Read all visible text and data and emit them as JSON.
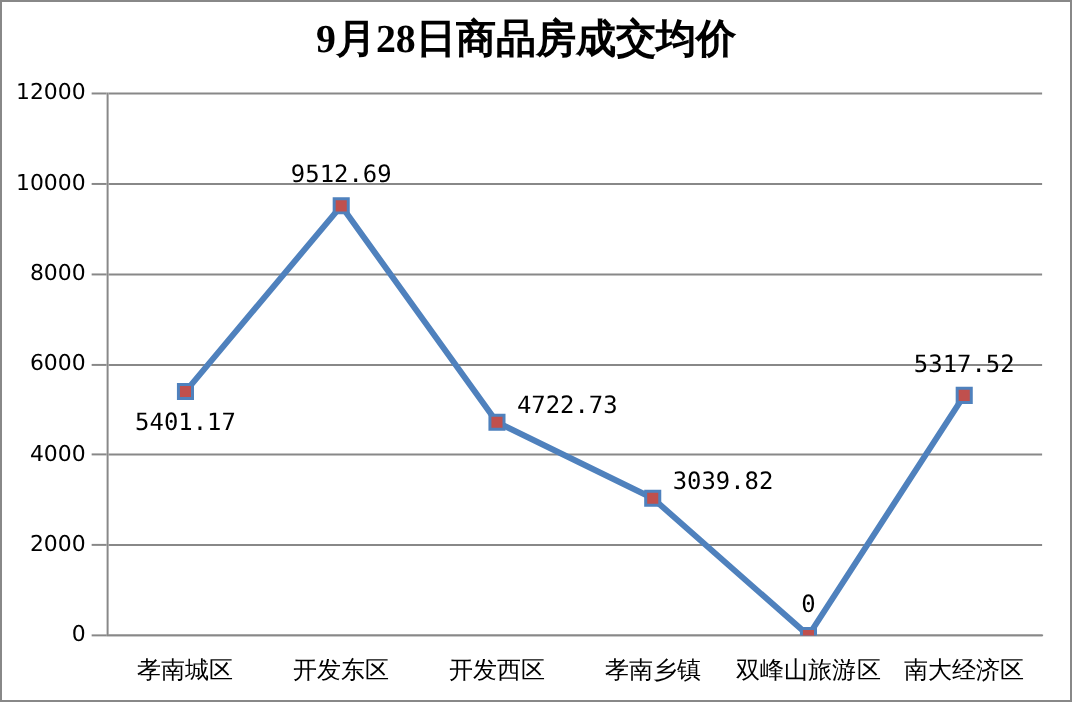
{
  "chart_data": {
    "type": "line",
    "title": "9月28日商品房成交均价",
    "categories": [
      "孝南城区",
      "开发东区",
      "开发西区",
      "孝南乡镇",
      "双峰山旅游区",
      "南大经济区"
    ],
    "series": [
      {
        "color": "#4f81bd",
        "values": [
          5401.17,
          9512.69,
          4722.73,
          3039.82,
          0,
          5317.52
        ]
      }
    ],
    "ylim": [
      0,
      12000
    ],
    "yticks": [
      0,
      2000,
      4000,
      6000,
      8000,
      10000,
      12000
    ],
    "grid": "y",
    "marker": "square",
    "line_style": "solid",
    "data_labels": true,
    "legend": false
  }
}
